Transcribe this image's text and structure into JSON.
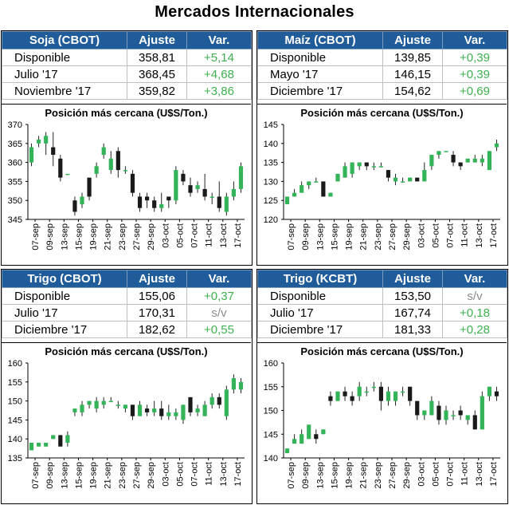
{
  "title": "Mercados Internacionales",
  "chart_title": "Posición más cercana (U$S/Ton.)",
  "colors": {
    "header": "#1f5c99",
    "up": "#33b458",
    "down": "#1a1a1a",
    "positive": "#3eb04f",
    "na": "#8c8c8c"
  },
  "x_labels": [
    "07-sep",
    "09-sep",
    "13-sep",
    "15-sep",
    "19-sep",
    "21-sep",
    "23-sep",
    "27-sep",
    "29-sep",
    "03-oct",
    "05-oct",
    "07-oct",
    "11-oct",
    "13-oct",
    "17-oct"
  ],
  "panels": [
    {
      "header": {
        "name": "Soja (CBOT)",
        "adj": "Ajuste",
        "var": "Var."
      },
      "rows": [
        {
          "label": "Disponible",
          "value": "358,81",
          "change": "+5,14"
        },
        {
          "label": "Julio '17",
          "value": "368,45",
          "change": "+4,68"
        },
        {
          "label": "Noviembre '17",
          "value": "359,82",
          "change": "+3,86"
        }
      ]
    },
    {
      "header": {
        "name": "Maíz (CBOT)",
        "adj": "Ajuste",
        "var": "Var."
      },
      "rows": [
        {
          "label": "Disponible",
          "value": "139,85",
          "change": "+0,39"
        },
        {
          "label": "Mayo '17",
          "value": "146,15",
          "change": "+0,39"
        },
        {
          "label": "Diciembre '17",
          "value": "154,62",
          "change": "+0,69"
        }
      ]
    },
    {
      "header": {
        "name": "Trigo (CBOT)",
        "adj": "Ajuste",
        "var": "Var."
      },
      "rows": [
        {
          "label": "Disponible",
          "value": "155,06",
          "change": "+0,37"
        },
        {
          "label": "Julio '17",
          "value": "170,31",
          "change": "s/v"
        },
        {
          "label": "Diciembre '17",
          "value": "182,62",
          "change": "+0,55"
        }
      ]
    },
    {
      "header": {
        "name": "Trigo (KCBT)",
        "adj": "Ajuste",
        "var": "Var."
      },
      "rows": [
        {
          "label": "Disponible",
          "value": "153,50",
          "change": "s/v"
        },
        {
          "label": "Julio '17",
          "value": "167,74",
          "change": "+0,18"
        },
        {
          "label": "Diciembre '17",
          "value": "181,33",
          "change": "+0,28"
        }
      ]
    }
  ],
  "chart_data": [
    {
      "type": "candlestick",
      "title": "Posición más cercana (U$S/Ton.)",
      "ylim": [
        345,
        370
      ],
      "yticks": [
        345,
        350,
        355,
        360,
        365,
        370
      ],
      "candles": [
        [
          360,
          364,
          365,
          359
        ],
        [
          365,
          366,
          367,
          364
        ],
        [
          365,
          367,
          368,
          362
        ],
        [
          364,
          362,
          368,
          359
        ],
        [
          361,
          356,
          362,
          355
        ],
        [
          357,
          357,
          357,
          357
        ],
        [
          350,
          347,
          351,
          346
        ],
        [
          349,
          351,
          352,
          348
        ],
        [
          356,
          351,
          356,
          350
        ],
        [
          357,
          359,
          360,
          356
        ],
        [
          362,
          364,
          365,
          361
        ],
        [
          358,
          361,
          363,
          357
        ],
        [
          363,
          358,
          364,
          356
        ],
        [
          358,
          358,
          359,
          357
        ],
        [
          357,
          352,
          358,
          351
        ],
        [
          351,
          348,
          352,
          347
        ],
        [
          351,
          350,
          352,
          348
        ],
        [
          350,
          348,
          351,
          347
        ],
        [
          348,
          349,
          352,
          347
        ],
        [
          351,
          350,
          351,
          348
        ],
        [
          350,
          358,
          359,
          349
        ],
        [
          357,
          355,
          358,
          354
        ],
        [
          354,
          352,
          356,
          351
        ],
        [
          353,
          354,
          355,
          352
        ],
        [
          353,
          351,
          357,
          350
        ],
        [
          351,
          351,
          352,
          349
        ],
        [
          351,
          348,
          355,
          347
        ],
        [
          347,
          351,
          352,
          346
        ],
        [
          351,
          353,
          355,
          350
        ],
        [
          353,
          359,
          360,
          352
        ]
      ]
    },
    {
      "type": "candlestick",
      "title": "Posición más cercana (U$S/Ton.)",
      "ylim": [
        120,
        145
      ],
      "yticks": [
        120,
        125,
        130,
        135,
        140,
        145
      ],
      "candles": [
        [
          124,
          126,
          126,
          124
        ],
        [
          126,
          127,
          128,
          126
        ],
        [
          127,
          129,
          130,
          127
        ],
        [
          129,
          130,
          130,
          128
        ],
        [
          130,
          130,
          131,
          130
        ],
        [
          130,
          126,
          130,
          126
        ],
        [
          126,
          127,
          127,
          126
        ],
        [
          130,
          132,
          132,
          130
        ],
        [
          131,
          134,
          135,
          131
        ],
        [
          132,
          135,
          135,
          131
        ],
        [
          134,
          135,
          135,
          133
        ],
        [
          135,
          134,
          135,
          133
        ],
        [
          134,
          134,
          135,
          133
        ],
        [
          134,
          134,
          135,
          134
        ],
        [
          133,
          131,
          133,
          130
        ],
        [
          130,
          131,
          132,
          129
        ],
        [
          130,
          130,
          131,
          130
        ],
        [
          130,
          131,
          131,
          130
        ],
        [
          131,
          130,
          131,
          130
        ],
        [
          130,
          133,
          135,
          130
        ],
        [
          134,
          137,
          137,
          133
        ],
        [
          137,
          138,
          138,
          136
        ],
        [
          138,
          138,
          138,
          138
        ],
        [
          137,
          135,
          138,
          134
        ],
        [
          135,
          134,
          135,
          133
        ],
        [
          135,
          136,
          136,
          135
        ],
        [
          135,
          136,
          137,
          135
        ],
        [
          135,
          136,
          137,
          134
        ],
        [
          133,
          138,
          138,
          133
        ],
        [
          139,
          140,
          141,
          138
        ]
      ]
    },
    {
      "type": "candlestick",
      "title": "Posición más cercana (U$S/Ton.)",
      "ylim": [
        135,
        160
      ],
      "yticks": [
        135,
        140,
        145,
        150,
        155,
        160
      ],
      "candles": [
        [
          137,
          139,
          139,
          137
        ],
        [
          138,
          139,
          139,
          138
        ],
        [
          138,
          139,
          139,
          138
        ],
        [
          140,
          141,
          141,
          140
        ],
        [
          141,
          138,
          141,
          138
        ],
        [
          139,
          141,
          142,
          138
        ],
        [
          147,
          148,
          148,
          146
        ],
        [
          147,
          149,
          150,
          146
        ],
        [
          149,
          150,
          150,
          148
        ],
        [
          148,
          150,
          151,
          147
        ],
        [
          149,
          150,
          151,
          148
        ],
        [
          150,
          150,
          151,
          150
        ],
        [
          149,
          149,
          150,
          148
        ],
        [
          148,
          149,
          149,
          147
        ],
        [
          149,
          146,
          149,
          145
        ],
        [
          146,
          149,
          150,
          146
        ],
        [
          148,
          147,
          149,
          146
        ],
        [
          147,
          148,
          150,
          146
        ],
        [
          148,
          146,
          150,
          145
        ],
        [
          146,
          147,
          149,
          145
        ],
        [
          146,
          147,
          148,
          145
        ],
        [
          145,
          149,
          149,
          144
        ],
        [
          151,
          147,
          151,
          146
        ],
        [
          147,
          148,
          149,
          146
        ],
        [
          146,
          149,
          150,
          146
        ],
        [
          149,
          151,
          152,
          148
        ],
        [
          151,
          149,
          152,
          148
        ],
        [
          146,
          153,
          154,
          145
        ],
        [
          153,
          156,
          157,
          152
        ],
        [
          153,
          155,
          156,
          152
        ]
      ]
    },
    {
      "type": "candlestick",
      "title": "Posición más cercana (U$S/Ton.)",
      "ylim": [
        140,
        160
      ],
      "yticks": [
        140,
        145,
        150,
        155,
        160
      ],
      "candles": [
        [
          141,
          142,
          142,
          141
        ],
        [
          143,
          144,
          145,
          143
        ],
        [
          143,
          145,
          146,
          143
        ],
        [
          144,
          147,
          147,
          144
        ],
        [
          145,
          144,
          146,
          143
        ],
        [
          145,
          146,
          146,
          145
        ],
        [
          153,
          152,
          154,
          151
        ],
        [
          152,
          154,
          154,
          152
        ],
        [
          154,
          153,
          155,
          152
        ],
        [
          153,
          152,
          154,
          151
        ],
        [
          153,
          155,
          156,
          152
        ],
        [
          154,
          154,
          155,
          153
        ],
        [
          155,
          155,
          156,
          154
        ],
        [
          155,
          152,
          156,
          150
        ],
        [
          152,
          154,
          155,
          151
        ],
        [
          152,
          154,
          154,
          151
        ],
        [
          154,
          154,
          155,
          153
        ],
        [
          155,
          152,
          155,
          151
        ],
        [
          152,
          149,
          152,
          148
        ],
        [
          149,
          150,
          150,
          148
        ],
        [
          149,
          152,
          153,
          149
        ],
        [
          151,
          148,
          152,
          147
        ],
        [
          148,
          150,
          151,
          147
        ],
        [
          149,
          149,
          150,
          148
        ],
        [
          150,
          149,
          151,
          148
        ],
        [
          148,
          149,
          149,
          147
        ],
        [
          149,
          146,
          150,
          146
        ],
        [
          146,
          153,
          154,
          146
        ],
        [
          153,
          155,
          155,
          152
        ],
        [
          154,
          153,
          155,
          152
        ]
      ]
    }
  ]
}
